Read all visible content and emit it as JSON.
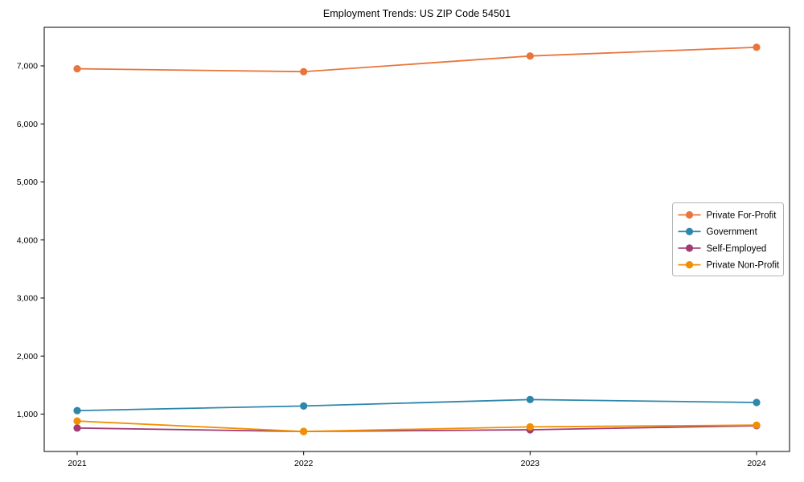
{
  "figure": {
    "background_color": "#ffffff",
    "spine_color": "#000000",
    "legend_border_color": "#b3b3b3"
  },
  "chart_data": {
    "type": "line",
    "title": "Employment Trends: US ZIP Code 54501",
    "xlabel": "",
    "ylabel": "",
    "categories": [
      "2021",
      "2022",
      "2023",
      "2024"
    ],
    "series": [
      {
        "name": "Private For-Profit",
        "color": "#E8763C",
        "values": [
          6950,
          6900,
          7170,
          7320
        ]
      },
      {
        "name": "Government",
        "color": "#2E86AB",
        "values": [
          1060,
          1140,
          1250,
          1200
        ]
      },
      {
        "name": "Self-Employed",
        "color": "#A23B72",
        "values": [
          760,
          700,
          730,
          800
        ]
      },
      {
        "name": "Private Non-Profit",
        "color": "#F18F01",
        "values": [
          880,
          700,
          780,
          810
        ]
      }
    ],
    "y_ticks": [
      1000,
      2000,
      3000,
      4000,
      5000,
      6000,
      7000
    ],
    "y_tick_labels": [
      "1,000",
      "2,000",
      "3,000",
      "4,000",
      "5,000",
      "6,000",
      "7,000"
    ],
    "ylim": [
      356,
      7664
    ],
    "grid": false,
    "legend_position": "center right",
    "legend_entries": [
      "Private For-Profit",
      "Government",
      "Self-Employed",
      "Private Non-Profit"
    ]
  }
}
